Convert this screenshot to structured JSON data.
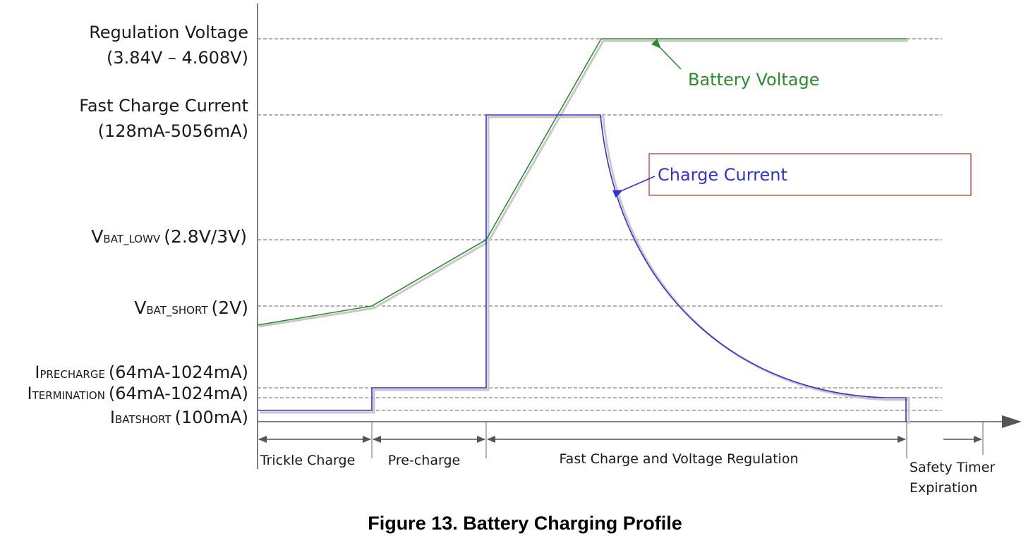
{
  "diagram": {
    "levels": {
      "regulation_voltage": {
        "title": "Regulation Voltage",
        "range": "(3.84V – 4.608V)"
      },
      "fast_charge_current": {
        "title": "Fast Charge Current",
        "range": "(128mA-5056mA)"
      },
      "vbat_lowv": {
        "main": "V",
        "sub": "BAT_LOWV",
        "suffix": "(2.8V/3V)"
      },
      "vbat_short": {
        "main": "V",
        "sub": "BAT_SHORT",
        "suffix": "(2V)"
      },
      "iprecharge": {
        "main": "I",
        "sub": "PRECHARGE",
        "suffix": "(64mA-1024mA)"
      },
      "itermination": {
        "main": "I",
        "sub": "TERMINATION",
        "suffix": "(64mA-1024mA)"
      },
      "ibatshort": {
        "main": "I",
        "sub": "BATSHORT",
        "suffix": "(100mA)"
      }
    },
    "curves": {
      "battery_voltage": {
        "label": "Battery Voltage",
        "color": "#2e8b2e"
      },
      "charge_current": {
        "label": "Charge Current",
        "color": "#3333cc"
      }
    },
    "phases": {
      "trickle": "Trickle Charge",
      "precharge": "Pre-charge",
      "fast": "Fast Charge and Voltage Regulation",
      "safety_line1": "Safety Timer",
      "safety_line2": "Expiration"
    },
    "caption": "Figure 13.  Battery Charging Profile",
    "colors": {
      "axis": "#555555",
      "callout_box": "#b03030"
    }
  }
}
